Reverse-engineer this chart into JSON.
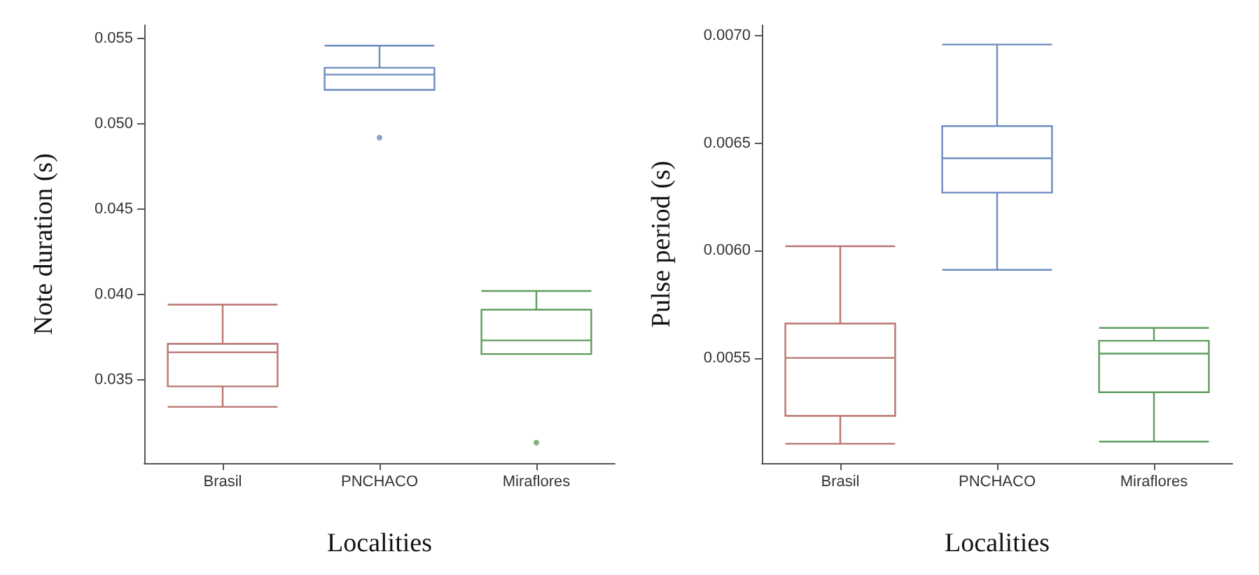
{
  "chart_data": [
    {
      "type": "box",
      "categories": [
        "Brasil",
        "PNCHACO",
        "Miraflores"
      ],
      "xlabel": "Localities",
      "ylabel": "Note duration (s)",
      "ylim": [
        0.0301,
        0.0558
      ],
      "yticks": [
        {
          "value": 0.035,
          "label": "0.035"
        },
        {
          "value": 0.04,
          "label": "0.040"
        },
        {
          "value": 0.045,
          "label": "0.045"
        },
        {
          "value": 0.05,
          "label": "0.050"
        },
        {
          "value": 0.055,
          "label": "0.055"
        }
      ],
      "grid": false,
      "colors": [
        "#b87470",
        "#6a8cc0",
        "#5e9c5e"
      ],
      "boxes": [
        {
          "low": 0.0334,
          "q1": 0.0346,
          "median": 0.0366,
          "q3": 0.0371,
          "high": 0.0394
        },
        {
          "low": 0.052,
          "q1": 0.052,
          "median": 0.0529,
          "q3": 0.0533,
          "high": 0.0546,
          "outliers": [
            0.0492
          ]
        },
        {
          "low": 0.0365,
          "q1": 0.0365,
          "median": 0.0373,
          "q3": 0.0391,
          "high": 0.0402,
          "outliers": [
            0.0313
          ]
        }
      ]
    },
    {
      "type": "box",
      "categories": [
        "Brasil",
        "PNCHACO",
        "Miraflores"
      ],
      "xlabel": "Localities",
      "ylabel": "Pulse period (s)",
      "ylim": [
        0.00501,
        0.00705
      ],
      "yticks": [
        {
          "value": 0.0055,
          "label": "0.0055"
        },
        {
          "value": 0.006,
          "label": "0.0060"
        },
        {
          "value": 0.0065,
          "label": "0.0065"
        },
        {
          "value": 0.007,
          "label": "0.0070"
        }
      ],
      "grid": false,
      "colors": [
        "#b87470",
        "#6a8cc0",
        "#5e9c5e"
      ],
      "boxes": [
        {
          "low": 0.0051,
          "q1": 0.00523,
          "median": 0.0055,
          "q3": 0.00566,
          "high": 0.00602
        },
        {
          "low": 0.00591,
          "q1": 0.00627,
          "median": 0.00643,
          "q3": 0.00658,
          "high": 0.00696
        },
        {
          "low": 0.00511,
          "q1": 0.00534,
          "median": 0.00552,
          "q3": 0.00558,
          "high": 0.00564
        }
      ]
    }
  ]
}
